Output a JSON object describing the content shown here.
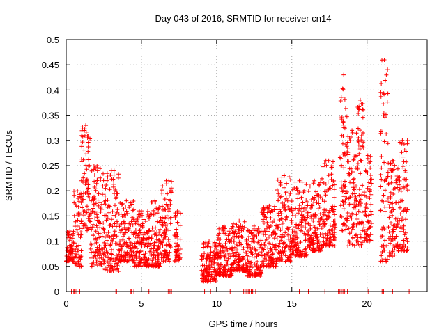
{
  "chart_data": {
    "type": "scatter",
    "title": "Day 043 of 2016, SRMTID for receiver cn14",
    "xlabel": "GPS time / hours",
    "ylabel": "SRMTID / TECUs",
    "xlim": [
      0,
      24
    ],
    "ylim": [
      0,
      0.5
    ],
    "xticks": [
      0,
      5,
      10,
      15,
      20
    ],
    "yticks": [
      0,
      0.05,
      0.1,
      0.15,
      0.2,
      0.25,
      0.3,
      0.35,
      0.4,
      0.45,
      0.5
    ],
    "xtick_labels": [
      "0",
      "5",
      "10",
      "15",
      "20"
    ],
    "ytick_labels": [
      "0",
      "0.05",
      "0.1",
      "0.15",
      "0.2",
      "0.25",
      "0.3",
      "0.35",
      "0.4",
      "0.45",
      "0.5"
    ],
    "grid": true,
    "marker": "+",
    "color": "#ff0000",
    "series": [
      {
        "name": "SRMTID",
        "segments": [
          {
            "x": [
              0.0,
              0.5
            ],
            "y_low": 0.06,
            "y_high": 0.12
          },
          {
            "x": [
              0.5,
              1.0
            ],
            "y_low": 0.05,
            "y_high": 0.2
          },
          {
            "x": [
              1.0,
              1.6
            ],
            "y_low": 0.12,
            "y_high": 0.33
          },
          {
            "x": [
              1.6,
              2.5
            ],
            "y_low": 0.05,
            "y_high": 0.25
          },
          {
            "x": [
              2.5,
              3.5
            ],
            "y_low": 0.04,
            "y_high": 0.24
          },
          {
            "x": [
              3.5,
              4.5
            ],
            "y_low": 0.06,
            "y_high": 0.18
          },
          {
            "x": [
              4.5,
              5.5
            ],
            "y_low": 0.05,
            "y_high": 0.16
          },
          {
            "x": [
              5.5,
              6.3
            ],
            "y_low": 0.05,
            "y_high": 0.18
          },
          {
            "x": [
              6.3,
              7.0
            ],
            "y_low": 0.06,
            "y_high": 0.22
          },
          {
            "x": [
              7.2,
              7.6
            ],
            "y_low": 0.06,
            "y_high": 0.16
          },
          {
            "x": [
              9.0,
              10.0
            ],
            "y_low": 0.02,
            "y_high": 0.1
          },
          {
            "x": [
              10.0,
              11.0
            ],
            "y_low": 0.03,
            "y_high": 0.13
          },
          {
            "x": [
              11.0,
              12.0
            ],
            "y_low": 0.04,
            "y_high": 0.14
          },
          {
            "x": [
              12.0,
              13.0
            ],
            "y_low": 0.03,
            "y_high": 0.13
          },
          {
            "x": [
              13.0,
              14.0
            ],
            "y_low": 0.05,
            "y_high": 0.17
          },
          {
            "x": [
              14.0,
              15.0
            ],
            "y_low": 0.06,
            "y_high": 0.23
          },
          {
            "x": [
              15.0,
              16.0
            ],
            "y_low": 0.07,
            "y_high": 0.22
          },
          {
            "x": [
              16.0,
              17.0
            ],
            "y_low": 0.08,
            "y_high": 0.22
          },
          {
            "x": [
              17.0,
              17.9
            ],
            "y_low": 0.09,
            "y_high": 0.26
          },
          {
            "x": [
              18.2,
              18.7
            ],
            "y_low": 0.12,
            "y_high": 0.43
          },
          {
            "x": [
              18.7,
              19.3
            ],
            "y_low": 0.09,
            "y_high": 0.32
          },
          {
            "x": [
              19.3,
              19.8
            ],
            "y_low": 0.09,
            "y_high": 0.38
          },
          {
            "x": [
              19.8,
              20.3
            ],
            "y_low": 0.1,
            "y_high": 0.27
          },
          {
            "x": [
              20.9,
              21.4
            ],
            "y_low": 0.06,
            "y_high": 0.46
          },
          {
            "x": [
              21.4,
              22.0
            ],
            "y_low": 0.07,
            "y_high": 0.26
          },
          {
            "x": [
              22.0,
              22.7
            ],
            "y_low": 0.08,
            "y_high": 0.3
          }
        ],
        "zero_points_x": [
          0.35,
          0.5,
          0.55,
          0.6,
          0.7,
          0.9,
          3.3,
          3.35,
          4.3,
          4.35,
          4.5,
          5.5,
          6.7,
          6.8,
          6.9,
          7.0,
          9.2,
          9.6,
          10.9,
          11.8,
          11.9,
          12.0,
          12.1,
          12.2,
          12.3,
          12.4,
          12.6,
          15.5,
          16.1,
          17.2,
          18.1,
          18.2,
          18.3,
          18.4,
          18.5,
          18.6,
          18.7,
          20.0,
          20.1,
          21.0,
          21.1,
          21.7,
          22.8
        ]
      }
    ]
  }
}
